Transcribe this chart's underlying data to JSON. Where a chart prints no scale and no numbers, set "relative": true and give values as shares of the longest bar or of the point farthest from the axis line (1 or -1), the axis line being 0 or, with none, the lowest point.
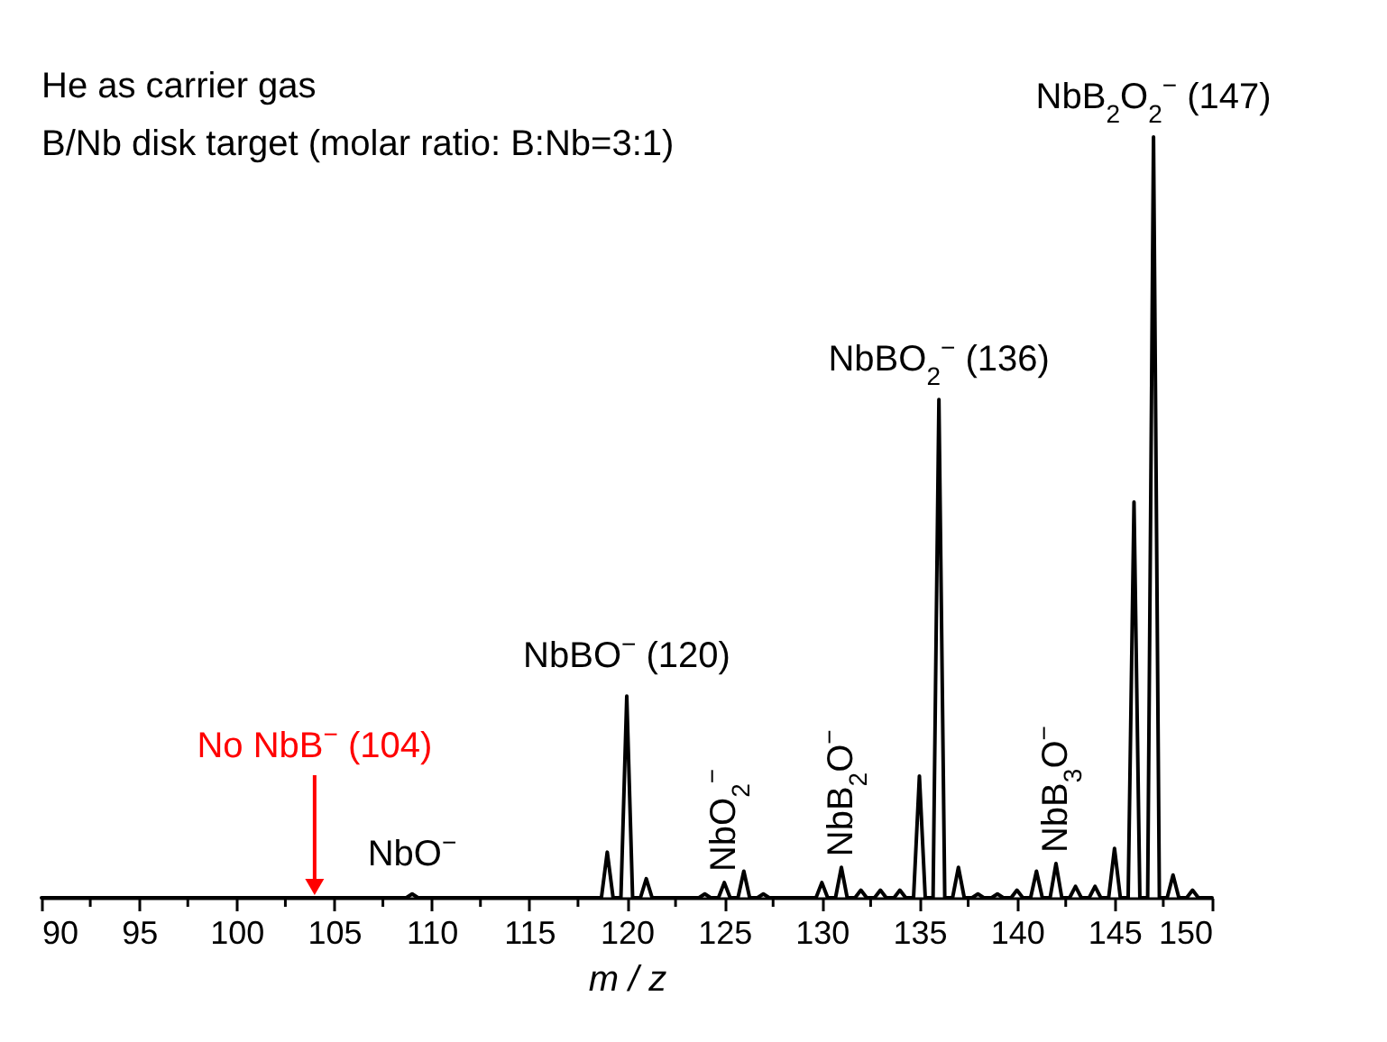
{
  "chart_data": {
    "type": "line",
    "relative": true,
    "xlabel": "m / z",
    "xlim": [
      90,
      150
    ],
    "xticks": [
      90,
      {
        "value": 92.5,
        "label": null
      },
      95,
      {
        "value": 97.5,
        "label": null
      },
      100,
      {
        "value": 102.5,
        "label": null
      },
      105,
      {
        "value": 107.5,
        "label": null
      },
      110,
      {
        "value": 112.5,
        "label": null
      },
      115,
      {
        "value": 117.5,
        "label": null
      },
      120,
      {
        "value": 122.5,
        "label": null
      },
      125,
      {
        "value": 127.5,
        "label": null
      },
      130,
      {
        "value": 132.5,
        "label": null
      },
      135,
      {
        "value": 137.5,
        "label": null
      },
      140,
      {
        "value": 142.5,
        "label": null
      },
      145,
      {
        "value": 147.5,
        "label": null
      },
      150
    ],
    "x": [
      90,
      108.7,
      109,
      109.3,
      118.7,
      119,
      119.3,
      119.7,
      120,
      120.3,
      120.7,
      121,
      121.3,
      123.7,
      124,
      124.3,
      124.7,
      125,
      125.3,
      125.7,
      126,
      126.3,
      126.7,
      127,
      127.3,
      129.7,
      130,
      130.3,
      130.7,
      131,
      131.3,
      131.7,
      132,
      132.3,
      132.7,
      133,
      133.3,
      133.7,
      134,
      134.3,
      134.7,
      135,
      135.3,
      135.7,
      136,
      136.3,
      136.7,
      137,
      137.3,
      137.7,
      138,
      138.3,
      138.7,
      139,
      139.3,
      139.7,
      140,
      140.3,
      140.7,
      141,
      141.3,
      141.7,
      142,
      142.3,
      142.7,
      143,
      143.3,
      143.7,
      144,
      144.3,
      144.7,
      145,
      145.3,
      145.7,
      146,
      146.3,
      146.7,
      147,
      147.3,
      147.7,
      148,
      148.3,
      148.7,
      149,
      149.3,
      150
    ],
    "series": [
      {
        "color": "#000000",
        "values": [
          0,
          0,
          0.005,
          0,
          0,
          0.06,
          0,
          0,
          0.265,
          0,
          0,
          0.025,
          0,
          0,
          0.005,
          0,
          0,
          0.02,
          0,
          0,
          0.035,
          0,
          0,
          0.005,
          0,
          0,
          0.02,
          0,
          0,
          0.04,
          0,
          0,
          0.01,
          0,
          0,
          0.01,
          0,
          0,
          0.01,
          0,
          0,
          0.16,
          0,
          0,
          0.655,
          0,
          0,
          0.04,
          0,
          0,
          0.005,
          0,
          0,
          0.005,
          0,
          0,
          0.01,
          0,
          0,
          0.035,
          0,
          0,
          0.045,
          0,
          0,
          0.015,
          0,
          0,
          0.015,
          0,
          0,
          0.065,
          0,
          0,
          0.52,
          0,
          0,
          1,
          0,
          0,
          0.03,
          0,
          0,
          0.01,
          0,
          0
        ]
      }
    ],
    "annotations": [
      "He as carrier gas",
      "B/Nb disk target (molar ratio: B:Nb=3:1)",
      {
        "text": "NbO$^{−}$",
        "x": 109,
        "y": 0.005
      },
      {
        "text": "NbBO$^{−}$ (120)",
        "x": 120,
        "y": 0.265
      },
      {
        "text": "NbO$_{2}$$^{−}$",
        "x": 125,
        "y": 0.02
      },
      {
        "text": "NbB$_{2}$O$^{−}$",
        "x": 131,
        "y": 0.04
      },
      {
        "text": "NbB$_{3}$O$^{−}$",
        "x": 142,
        "y": 0.045
      },
      {
        "text": "NbBO$_{2}$$^{−}$ (136)",
        "x": 136,
        "y": 0.655
      },
      {
        "text": "NbB$_{2}$O$_{2}$$^{−}$ (147)",
        "x": 147,
        "y": 1
      }
    ],
    "ref_lines": [
      {
        "axis": "x",
        "value": 104,
        "label": "No NbB$^{−}$ (104)",
        "color": "#ff0000"
      }
    ],
    "marker": "none",
    "line_style": "solid",
    "grid": false
  }
}
